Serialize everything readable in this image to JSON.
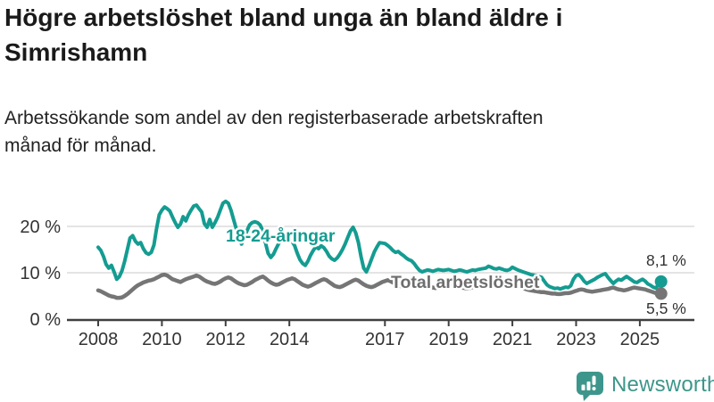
{
  "header": {
    "title": "Högre arbetslöshet bland unga än bland äldre i Simrishamn",
    "subtitle": "Arbetssökande som andel av den registerbaserade arbetskraften månad för månad."
  },
  "colors": {
    "youth_line": "#149c91",
    "total_line": "#757575",
    "total_label": "#6e6e6e",
    "axis": "#3f3f3f",
    "grid": "#dcdcdc",
    "tick_text": "#333333",
    "value_text": "#333333",
    "brand_teal": "#3d968b"
  },
  "chart_data": {
    "type": "line",
    "title": "Högre arbetslöshet bland unga än bland äldre i Simrishamn",
    "xlabel": "",
    "ylabel": "Arbetssökande som andel av den registerbaserade arbetskraften",
    "x_unit": "year-month",
    "start_year": 2008,
    "points_per_year": 12,
    "ylim": [
      0,
      27
    ],
    "grid": "horizontal",
    "legend_position": "inline-labels",
    "y_ticks": [
      {
        "value": 0,
        "label": "0 %"
      },
      {
        "value": 10,
        "label": "10 %"
      },
      {
        "value": 20,
        "label": "20 %"
      }
    ],
    "x_ticks": [
      2008,
      2010,
      2012,
      2014,
      2017,
      2019,
      2021,
      2023,
      2025
    ],
    "series": [
      {
        "name": "Total arbetslöshet",
        "label": "Total arbetslöshet",
        "color": "#757575",
        "label_color": "#6e6e6e",
        "end_value_label": "5,5 %",
        "values": [
          6.2,
          6.0,
          5.7,
          5.4,
          5.1,
          4.9,
          4.8,
          4.6,
          4.6,
          4.7,
          5.0,
          5.4,
          5.9,
          6.4,
          6.9,
          7.3,
          7.6,
          7.9,
          8.1,
          8.3,
          8.4,
          8.6,
          8.9,
          9.2,
          9.5,
          9.6,
          9.4,
          9.0,
          8.6,
          8.4,
          8.2,
          8.0,
          8.3,
          8.6,
          8.8,
          9.0,
          9.2,
          9.4,
          9.2,
          8.8,
          8.4,
          8.1,
          7.9,
          7.7,
          7.6,
          7.8,
          8.1,
          8.5,
          8.8,
          9.0,
          8.8,
          8.4,
          8.0,
          7.7,
          7.5,
          7.3,
          7.4,
          7.7,
          8.0,
          8.4,
          8.7,
          9.0,
          9.2,
          8.8,
          8.3,
          7.9,
          7.6,
          7.4,
          7.5,
          7.8,
          8.1,
          8.4,
          8.6,
          8.8,
          8.6,
          8.2,
          7.8,
          7.4,
          7.2,
          7.0,
          7.2,
          7.5,
          7.8,
          8.1,
          8.4,
          8.6,
          8.4,
          8.0,
          7.6,
          7.2,
          7.0,
          6.9,
          7.1,
          7.4,
          7.7,
          8.0,
          8.3,
          8.5,
          8.3,
          7.9,
          7.5,
          7.2,
          7.0,
          6.9,
          7.1,
          7.4,
          7.7,
          8.0,
          8.2,
          8.4,
          8.2,
          7.9,
          7.6,
          7.3,
          7.1,
          7.0,
          7.2,
          7.4,
          7.7,
          7.9,
          8.0,
          8.1,
          7.9,
          7.6,
          7.3,
          7.0,
          6.8,
          6.7,
          6.8,
          7.0,
          7.2,
          7.4,
          7.5,
          7.6,
          7.4,
          7.2,
          7.0,
          6.8,
          6.7,
          6.6,
          6.7,
          6.9,
          7.1,
          7.3,
          7.5,
          7.7,
          8.0,
          8.4,
          8.6,
          8.5,
          8.3,
          8.1,
          7.9,
          7.7,
          7.6,
          7.5,
          7.4,
          7.3,
          7.1,
          6.9,
          6.7,
          6.5,
          6.3,
          6.2,
          6.1,
          6.0,
          5.9,
          5.8,
          5.8,
          5.7,
          5.6,
          5.5,
          5.5,
          5.4,
          5.4,
          5.5,
          5.6,
          5.6,
          5.7,
          5.9,
          6.1,
          6.3,
          6.4,
          6.3,
          6.1,
          6.0,
          5.9,
          6.0,
          6.1,
          6.2,
          6.3,
          6.4,
          6.5,
          6.7,
          6.8,
          6.6,
          6.4,
          6.3,
          6.2,
          6.3,
          6.5,
          6.7,
          6.8,
          6.7,
          6.6,
          6.5,
          6.4,
          6.2,
          6.0,
          5.8,
          5.6,
          5.5,
          5.5
        ]
      },
      {
        "name": "18-24-åringar",
        "label": "18-24-åringar",
        "color": "#149c91",
        "label_color": "#149c91",
        "end_value_label": "8,1 %",
        "values": [
          15.5,
          14.8,
          13.5,
          11.8,
          11.0,
          11.6,
          10.2,
          8.6,
          9.2,
          10.5,
          12.5,
          15.0,
          17.5,
          18.0,
          16.8,
          16.2,
          16.5,
          15.2,
          14.3,
          14.0,
          14.4,
          16.0,
          19.5,
          22.5,
          23.5,
          24.2,
          23.8,
          23.3,
          22.0,
          20.8,
          19.8,
          20.5,
          22.1,
          21.2,
          22.5,
          23.5,
          24.4,
          24.6,
          23.8,
          23.1,
          20.6,
          19.8,
          21.5,
          19.8,
          20.8,
          22.0,
          23.5,
          25.0,
          25.4,
          25.0,
          23.5,
          21.5,
          19.5,
          17.5,
          16.2,
          17.5,
          19.0,
          20.3,
          20.8,
          21.0,
          20.8,
          20.3,
          19.0,
          16.5,
          14.2,
          13.3,
          14.0,
          15.2,
          16.3,
          17.2,
          17.8,
          17.4,
          17.2,
          16.8,
          15.8,
          14.2,
          12.8,
          12.0,
          11.6,
          12.5,
          13.8,
          14.8,
          15.6,
          15.2,
          15.8,
          15.4,
          14.6,
          13.6,
          13.0,
          12.7,
          13.2,
          14.0,
          15.0,
          16.2,
          17.6,
          19.0,
          19.8,
          18.6,
          16.5,
          13.5,
          11.0,
          10.2,
          11.5,
          13.0,
          14.5,
          15.6,
          16.5,
          16.4,
          16.3,
          15.9,
          15.4,
          14.8,
          14.4,
          14.6,
          14.1,
          13.7,
          13.2,
          12.8,
          12.6,
          12.0,
          11.2,
          10.5,
          10.2,
          10.4,
          10.6,
          10.5,
          10.3,
          10.5,
          10.7,
          10.6,
          10.5,
          10.6,
          10.7,
          10.5,
          10.3,
          10.4,
          10.6,
          10.5,
          10.3,
          10.2,
          10.4,
          10.6,
          10.5,
          10.7,
          10.8,
          10.9,
          11.0,
          11.4,
          11.2,
          10.9,
          10.8,
          11.0,
          10.8,
          10.6,
          10.5,
          10.7,
          11.2,
          10.9,
          10.6,
          10.4,
          10.2,
          10.0,
          9.8,
          9.6,
          9.5,
          9.4,
          9.2,
          9.0,
          8.2,
          7.4,
          7.0,
          6.8,
          6.6,
          6.7,
          6.5,
          6.7,
          6.9,
          6.8,
          7.2,
          8.6,
          9.4,
          9.6,
          9.0,
          8.2,
          7.7,
          8.0,
          8.3,
          8.6,
          9.0,
          9.3,
          9.6,
          9.8,
          9.0,
          8.3,
          7.7,
          8.2,
          8.6,
          8.4,
          8.8,
          9.2,
          8.8,
          8.4,
          8.0,
          7.9,
          8.3,
          8.6,
          8.2,
          7.6,
          7.3,
          6.9,
          6.7,
          7.4,
          8.1
        ]
      }
    ]
  },
  "footer": {
    "brand": "Newsworthy"
  }
}
